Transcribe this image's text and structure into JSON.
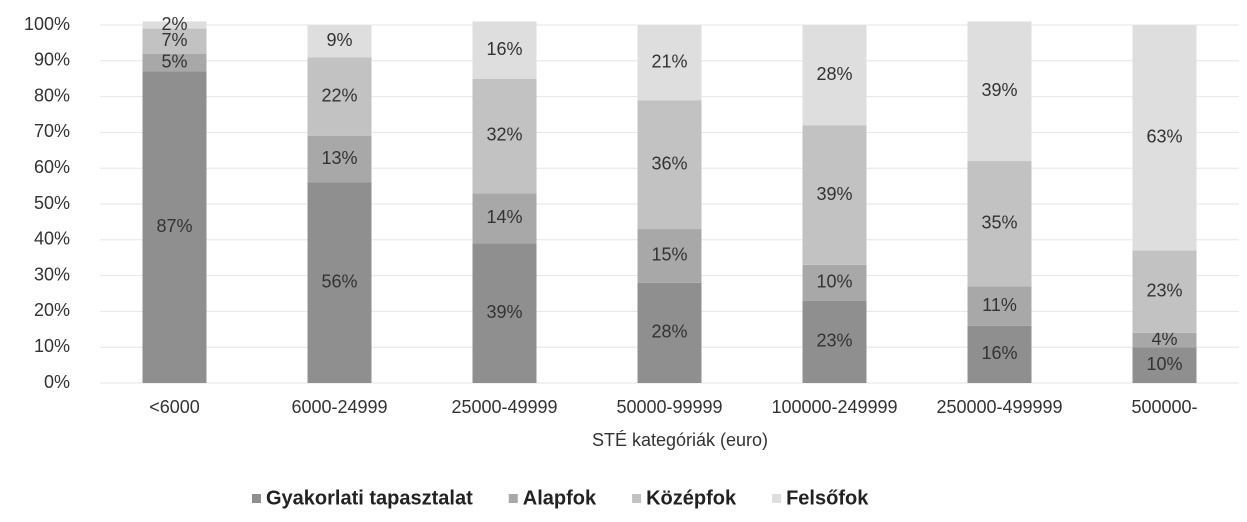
{
  "chart_data": {
    "type": "stacked_bar",
    "xlabel": "STÉ kategóriák (euro)",
    "categories": [
      "<6000",
      "6000-24999",
      "25000-49999",
      "50000-99999",
      "100000-249999",
      "250000-499999",
      "500000-"
    ],
    "series": [
      {
        "name": "Gyakorlati tapasztalat",
        "color": "#8f8f8f",
        "values": [
          87,
          56,
          39,
          28,
          23,
          16,
          10
        ],
        "value_labels": [
          "87%",
          "56%",
          "39%",
          "28%",
          "23%",
          "16%",
          "10%"
        ]
      },
      {
        "name": "Alapfok",
        "color": "#a8a8a8",
        "values": [
          5,
          13,
          14,
          15,
          10,
          11,
          4
        ],
        "value_labels": [
          "5%",
          "13%",
          "14%",
          "15%",
          "10%",
          "11%",
          "4%"
        ]
      },
      {
        "name": "Középfok",
        "color": "#c2c2c2",
        "values": [
          7,
          22,
          32,
          36,
          39,
          35,
          23
        ],
        "value_labels": [
          "7%",
          "22%",
          "32%",
          "36%",
          "39%",
          "35%",
          "23%"
        ]
      },
      {
        "name": "Felsőfok",
        "color": "#dedede",
        "values": [
          2,
          9,
          16,
          21,
          28,
          39,
          63
        ],
        "value_labels": [
          "2%",
          "9%",
          "16%",
          "21%",
          "28%",
          "39%",
          "63%"
        ]
      }
    ],
    "ylim": [
      0,
      100
    ],
    "yticks": [
      {
        "value": 0,
        "label": "0%"
      },
      {
        "value": 10,
        "label": "10%"
      },
      {
        "value": 20,
        "label": "20%"
      },
      {
        "value": 30,
        "label": "30%"
      },
      {
        "value": 40,
        "label": "40%"
      },
      {
        "value": 50,
        "label": "50%"
      },
      {
        "value": 60,
        "label": "60%"
      },
      {
        "value": 70,
        "label": "70%"
      },
      {
        "value": 80,
        "label": "80%"
      },
      {
        "value": 90,
        "label": "90%"
      },
      {
        "value": 100,
        "label": "100%"
      }
    ],
    "grid": true
  }
}
